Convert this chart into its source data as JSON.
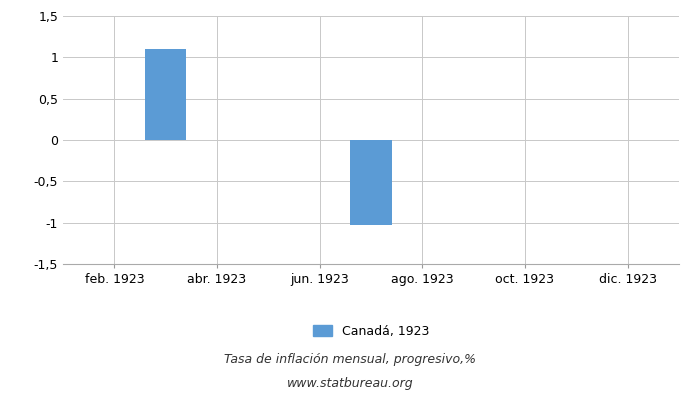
{
  "bar_positions": [
    3,
    7
  ],
  "bar_values": [
    1.1,
    -1.03
  ],
  "bar_color": "#5b9bd5",
  "bar_width": 0.8,
  "ylim": [
    -1.5,
    1.5
  ],
  "yticks": [
    -1.5,
    -1.0,
    -0.5,
    0.0,
    0.5,
    1.0,
    1.5
  ],
  "ytick_labels": [
    "-1,5",
    "-1",
    "-0,5",
    "0",
    "0,5",
    "1",
    "1,5"
  ],
  "xlim": [
    1,
    13
  ],
  "xtick_positions": [
    2,
    4,
    6,
    8,
    10,
    12
  ],
  "xtick_labels": [
    "feb. 1923",
    "abr. 1923",
    "jun. 1923",
    "ago. 1923",
    "oct. 1923",
    "dic. 1923"
  ],
  "legend_label": "Canadá, 1923",
  "subtitle1": "Tasa de inflación mensual, progresivo,%",
  "subtitle2": "www.statbureau.org",
  "background_color": "#ffffff",
  "grid_color": "#c8c8c8",
  "tick_fontsize": 9,
  "legend_fontsize": 9,
  "subtitle_fontsize": 9
}
